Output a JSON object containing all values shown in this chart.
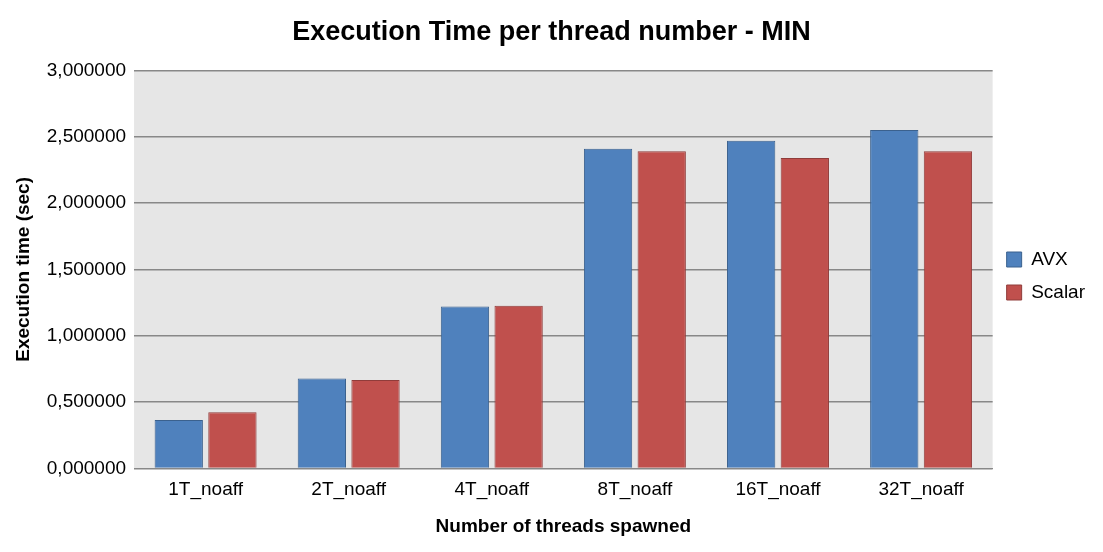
{
  "chart_data": {
    "type": "bar",
    "title": "Execution Time per thread number - MIN",
    "xlabel": "Number of threads spawned",
    "ylabel": "Execution time (sec)",
    "categories": [
      "1T_noaff",
      "2T_noaff",
      "4T_noaff",
      "8T_noaff",
      "16T_noaff",
      "32T_noaff"
    ],
    "series": [
      {
        "name": "AVX",
        "color": "#4f81bd",
        "values": [
          0.364,
          0.678,
          1.22,
          2.41,
          2.47,
          2.55
        ]
      },
      {
        "name": "Scalar",
        "color": "#c0504d",
        "values": [
          0.424,
          0.667,
          1.226,
          2.39,
          2.34,
          2.39
        ]
      }
    ],
    "ylim": [
      0,
      3
    ],
    "yticks": [
      {
        "value": 0,
        "label": "0,000000"
      },
      {
        "value": 0.5,
        "label": "0,500000"
      },
      {
        "value": 1,
        "label": "1,000000"
      },
      {
        "value": 1.5,
        "label": "1,500000"
      },
      {
        "value": 2,
        "label": "2,000000"
      },
      {
        "value": 2.5,
        "label": "2,500000"
      },
      {
        "value": 3,
        "label": "3,000000"
      }
    ],
    "grid": "y",
    "legend": "right"
  }
}
